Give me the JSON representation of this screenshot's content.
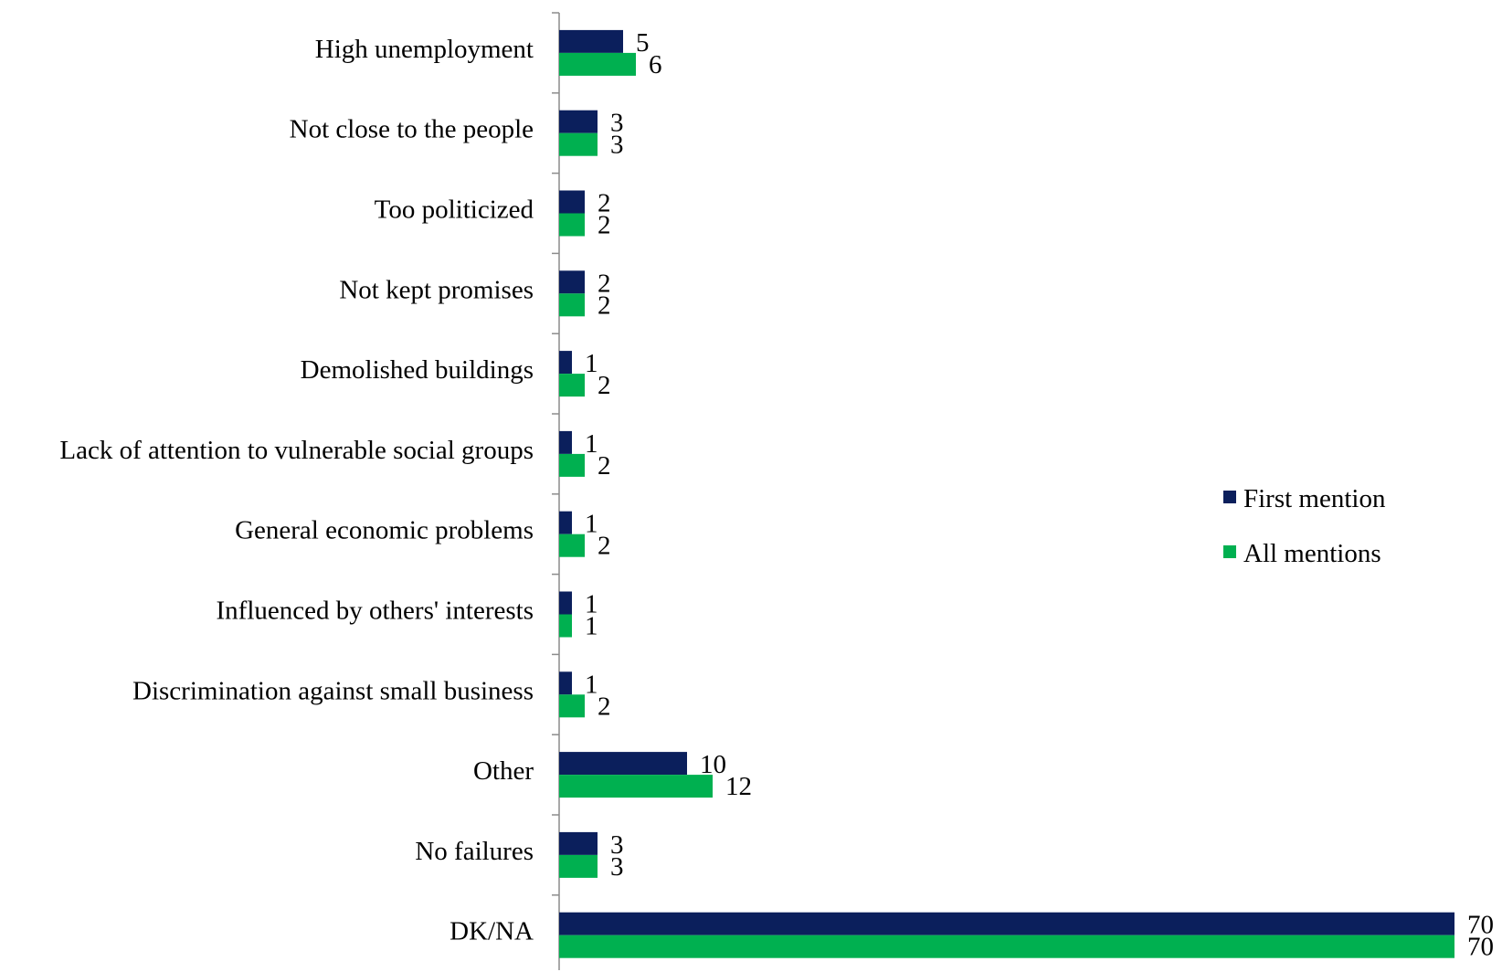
{
  "chart_data": {
    "type": "bar",
    "orientation": "horizontal",
    "title": "",
    "xlabel": "",
    "ylabel": "",
    "categories": [
      "High unemployment",
      "Not close to the people",
      "Too politicized",
      "Not kept promises",
      "Demolished buildings",
      "Lack of attention to vulnerable social groups",
      "General economic problems",
      "Influenced by others' interests",
      "Discrimination against small business",
      "Other",
      "No failures",
      "DK/NA"
    ],
    "series": [
      {
        "name": "First mention",
        "color": "#0b1f5c",
        "values": [
          5,
          3,
          2,
          2,
          1,
          1,
          1,
          1,
          1,
          10,
          3,
          70
        ]
      },
      {
        "name": "All mentions",
        "color": "#00b050",
        "values": [
          6,
          3,
          2,
          2,
          2,
          2,
          2,
          1,
          2,
          12,
          3,
          70
        ]
      }
    ],
    "xlim": [
      0,
      70
    ],
    "grid": false,
    "legend_position": "right"
  }
}
